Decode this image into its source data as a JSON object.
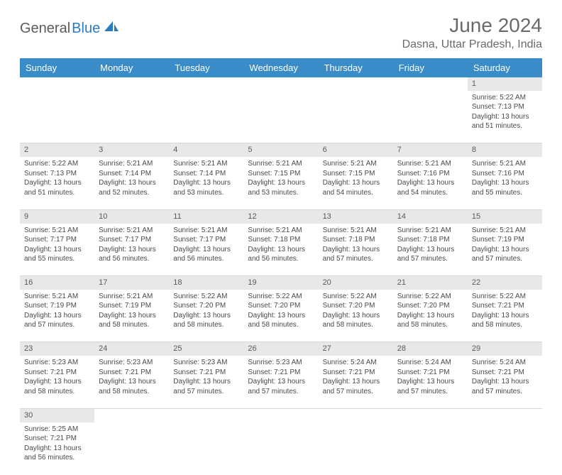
{
  "logo": {
    "part1": "General",
    "part2": "Blue"
  },
  "title": "June 2024",
  "location": "Dasna, Uttar Pradesh, India",
  "colors": {
    "header_bg": "#3a8cc9",
    "header_text": "#ffffff",
    "daynum_bg": "#e8e8e8",
    "text": "#4a4a4a",
    "title_text": "#6a6a6a",
    "logo_gray": "#5a5a5a",
    "logo_blue": "#2b7bbf"
  },
  "weekdays": [
    "Sunday",
    "Monday",
    "Tuesday",
    "Wednesday",
    "Thursday",
    "Friday",
    "Saturday"
  ],
  "weeks": [
    {
      "nums": [
        "",
        "",
        "",
        "",
        "",
        "",
        "1"
      ],
      "cells": [
        null,
        null,
        null,
        null,
        null,
        null,
        {
          "sunrise": "Sunrise: 5:22 AM",
          "sunset": "Sunset: 7:13 PM",
          "day1": "Daylight: 13 hours",
          "day2": "and 51 minutes."
        }
      ]
    },
    {
      "nums": [
        "2",
        "3",
        "4",
        "5",
        "6",
        "7",
        "8"
      ],
      "cells": [
        {
          "sunrise": "Sunrise: 5:22 AM",
          "sunset": "Sunset: 7:13 PM",
          "day1": "Daylight: 13 hours",
          "day2": "and 51 minutes."
        },
        {
          "sunrise": "Sunrise: 5:21 AM",
          "sunset": "Sunset: 7:14 PM",
          "day1": "Daylight: 13 hours",
          "day2": "and 52 minutes."
        },
        {
          "sunrise": "Sunrise: 5:21 AM",
          "sunset": "Sunset: 7:14 PM",
          "day1": "Daylight: 13 hours",
          "day2": "and 53 minutes."
        },
        {
          "sunrise": "Sunrise: 5:21 AM",
          "sunset": "Sunset: 7:15 PM",
          "day1": "Daylight: 13 hours",
          "day2": "and 53 minutes."
        },
        {
          "sunrise": "Sunrise: 5:21 AM",
          "sunset": "Sunset: 7:15 PM",
          "day1": "Daylight: 13 hours",
          "day2": "and 54 minutes."
        },
        {
          "sunrise": "Sunrise: 5:21 AM",
          "sunset": "Sunset: 7:16 PM",
          "day1": "Daylight: 13 hours",
          "day2": "and 54 minutes."
        },
        {
          "sunrise": "Sunrise: 5:21 AM",
          "sunset": "Sunset: 7:16 PM",
          "day1": "Daylight: 13 hours",
          "day2": "and 55 minutes."
        }
      ]
    },
    {
      "nums": [
        "9",
        "10",
        "11",
        "12",
        "13",
        "14",
        "15"
      ],
      "cells": [
        {
          "sunrise": "Sunrise: 5:21 AM",
          "sunset": "Sunset: 7:17 PM",
          "day1": "Daylight: 13 hours",
          "day2": "and 55 minutes."
        },
        {
          "sunrise": "Sunrise: 5:21 AM",
          "sunset": "Sunset: 7:17 PM",
          "day1": "Daylight: 13 hours",
          "day2": "and 56 minutes."
        },
        {
          "sunrise": "Sunrise: 5:21 AM",
          "sunset": "Sunset: 7:17 PM",
          "day1": "Daylight: 13 hours",
          "day2": "and 56 minutes."
        },
        {
          "sunrise": "Sunrise: 5:21 AM",
          "sunset": "Sunset: 7:18 PM",
          "day1": "Daylight: 13 hours",
          "day2": "and 56 minutes."
        },
        {
          "sunrise": "Sunrise: 5:21 AM",
          "sunset": "Sunset: 7:18 PM",
          "day1": "Daylight: 13 hours",
          "day2": "and 57 minutes."
        },
        {
          "sunrise": "Sunrise: 5:21 AM",
          "sunset": "Sunset: 7:18 PM",
          "day1": "Daylight: 13 hours",
          "day2": "and 57 minutes."
        },
        {
          "sunrise": "Sunrise: 5:21 AM",
          "sunset": "Sunset: 7:19 PM",
          "day1": "Daylight: 13 hours",
          "day2": "and 57 minutes."
        }
      ]
    },
    {
      "nums": [
        "16",
        "17",
        "18",
        "19",
        "20",
        "21",
        "22"
      ],
      "cells": [
        {
          "sunrise": "Sunrise: 5:21 AM",
          "sunset": "Sunset: 7:19 PM",
          "day1": "Daylight: 13 hours",
          "day2": "and 57 minutes."
        },
        {
          "sunrise": "Sunrise: 5:21 AM",
          "sunset": "Sunset: 7:19 PM",
          "day1": "Daylight: 13 hours",
          "day2": "and 58 minutes."
        },
        {
          "sunrise": "Sunrise: 5:22 AM",
          "sunset": "Sunset: 7:20 PM",
          "day1": "Daylight: 13 hours",
          "day2": "and 58 minutes."
        },
        {
          "sunrise": "Sunrise: 5:22 AM",
          "sunset": "Sunset: 7:20 PM",
          "day1": "Daylight: 13 hours",
          "day2": "and 58 minutes."
        },
        {
          "sunrise": "Sunrise: 5:22 AM",
          "sunset": "Sunset: 7:20 PM",
          "day1": "Daylight: 13 hours",
          "day2": "and 58 minutes."
        },
        {
          "sunrise": "Sunrise: 5:22 AM",
          "sunset": "Sunset: 7:20 PM",
          "day1": "Daylight: 13 hours",
          "day2": "and 58 minutes."
        },
        {
          "sunrise": "Sunrise: 5:22 AM",
          "sunset": "Sunset: 7:21 PM",
          "day1": "Daylight: 13 hours",
          "day2": "and 58 minutes."
        }
      ]
    },
    {
      "nums": [
        "23",
        "24",
        "25",
        "26",
        "27",
        "28",
        "29"
      ],
      "cells": [
        {
          "sunrise": "Sunrise: 5:23 AM",
          "sunset": "Sunset: 7:21 PM",
          "day1": "Daylight: 13 hours",
          "day2": "and 58 minutes."
        },
        {
          "sunrise": "Sunrise: 5:23 AM",
          "sunset": "Sunset: 7:21 PM",
          "day1": "Daylight: 13 hours",
          "day2": "and 58 minutes."
        },
        {
          "sunrise": "Sunrise: 5:23 AM",
          "sunset": "Sunset: 7:21 PM",
          "day1": "Daylight: 13 hours",
          "day2": "and 57 minutes."
        },
        {
          "sunrise": "Sunrise: 5:23 AM",
          "sunset": "Sunset: 7:21 PM",
          "day1": "Daylight: 13 hours",
          "day2": "and 57 minutes."
        },
        {
          "sunrise": "Sunrise: 5:24 AM",
          "sunset": "Sunset: 7:21 PM",
          "day1": "Daylight: 13 hours",
          "day2": "and 57 minutes."
        },
        {
          "sunrise": "Sunrise: 5:24 AM",
          "sunset": "Sunset: 7:21 PM",
          "day1": "Daylight: 13 hours",
          "day2": "and 57 minutes."
        },
        {
          "sunrise": "Sunrise: 5:24 AM",
          "sunset": "Sunset: 7:21 PM",
          "day1": "Daylight: 13 hours",
          "day2": "and 57 minutes."
        }
      ]
    },
    {
      "nums": [
        "30",
        "",
        "",
        "",
        "",
        "",
        ""
      ],
      "cells": [
        {
          "sunrise": "Sunrise: 5:25 AM",
          "sunset": "Sunset: 7:21 PM",
          "day1": "Daylight: 13 hours",
          "day2": "and 56 minutes."
        },
        null,
        null,
        null,
        null,
        null,
        null
      ]
    }
  ]
}
